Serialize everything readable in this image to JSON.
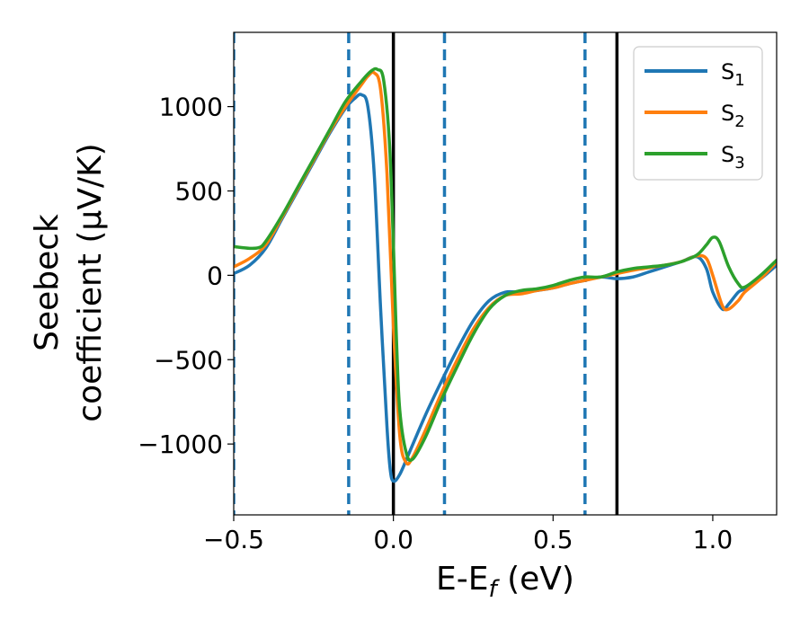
{
  "chart_data": {
    "type": "line",
    "xlabel": "E-E_f (eV)",
    "xlabel_main": "E-E",
    "xlabel_sub": "f",
    "xlabel_tail": " (eV)",
    "ylabel_line1": "Seebeck",
    "ylabel_line2": "coefficient  (μV/K)",
    "xlim": [
      -0.5,
      1.2
    ],
    "ylim": [
      -1420,
      1440
    ],
    "xticks": [
      -0.5,
      0.0,
      0.5,
      1.0
    ],
    "xtick_labels": [
      "−0.5",
      "0.0",
      "0.5",
      "1.0"
    ],
    "yticks": [
      -1000,
      -500,
      0,
      500,
      1000
    ],
    "ytick_labels": [
      "−1000",
      "−500",
      "0",
      "500",
      "1000"
    ],
    "grid": false,
    "legend_position": "top-right",
    "vlines_solid": [
      0.0,
      0.7
    ],
    "vlines_dashed": [
      -0.5,
      -0.14,
      0.16,
      0.6
    ],
    "vline_solid_color": "#000000",
    "vline_dashed_color": "#1f77b4",
    "series": [
      {
        "name": "S",
        "subscript": "1",
        "color": "#1f77b4",
        "x": [
          -0.5,
          -0.45,
          -0.4,
          -0.35,
          -0.3,
          -0.25,
          -0.2,
          -0.15,
          -0.12,
          -0.1,
          -0.08,
          -0.06,
          -0.04,
          -0.02,
          -0.01,
          0.0,
          0.02,
          0.05,
          0.1,
          0.15,
          0.2,
          0.25,
          0.3,
          0.35,
          0.4,
          0.45,
          0.5,
          0.55,
          0.6,
          0.65,
          0.7,
          0.75,
          0.8,
          0.85,
          0.9,
          0.95,
          0.98,
          1.0,
          1.03,
          1.05,
          1.08,
          1.1,
          1.15,
          1.2
        ],
        "y": [
          10,
          60,
          160,
          330,
          500,
          670,
          840,
          990,
          1050,
          1070,
          1000,
          600,
          -200,
          -900,
          -1150,
          -1220,
          -1180,
          -1050,
          -830,
          -630,
          -440,
          -270,
          -150,
          -100,
          -100,
          -90,
          -75,
          -50,
          -30,
          -10,
          -20,
          -10,
          20,
          50,
          80,
          110,
          40,
          -100,
          -200,
          -170,
          -100,
          -80,
          -20,
          60
        ]
      },
      {
        "name": "S",
        "subscript": "2",
        "color": "#ff7f0e",
        "x": [
          -0.5,
          -0.45,
          -0.4,
          -0.35,
          -0.3,
          -0.25,
          -0.2,
          -0.15,
          -0.1,
          -0.08,
          -0.06,
          -0.04,
          -0.02,
          0.0,
          0.02,
          0.04,
          0.06,
          0.1,
          0.15,
          0.2,
          0.25,
          0.3,
          0.35,
          0.4,
          0.45,
          0.5,
          0.55,
          0.6,
          0.65,
          0.7,
          0.75,
          0.8,
          0.85,
          0.9,
          0.95,
          0.98,
          1.0,
          1.03,
          1.05,
          1.08,
          1.1,
          1.15,
          1.2
        ],
        "y": [
          50,
          100,
          180,
          340,
          510,
          680,
          850,
          1000,
          1130,
          1180,
          1200,
          1100,
          600,
          -300,
          -950,
          -1110,
          -1080,
          -920,
          -700,
          -500,
          -320,
          -190,
          -120,
          -110,
          -90,
          -75,
          -50,
          -30,
          -10,
          10,
          30,
          45,
          60,
          80,
          115,
          100,
          0,
          -180,
          -200,
          -150,
          -100,
          -20,
          80
        ]
      },
      {
        "name": "S",
        "subscript": "3",
        "color": "#2ca02c",
        "x": [
          -0.5,
          -0.45,
          -0.42,
          -0.4,
          -0.35,
          -0.3,
          -0.25,
          -0.2,
          -0.15,
          -0.1,
          -0.07,
          -0.05,
          -0.03,
          -0.01,
          0.01,
          0.02,
          0.04,
          0.06,
          0.1,
          0.15,
          0.2,
          0.25,
          0.3,
          0.35,
          0.4,
          0.45,
          0.5,
          0.55,
          0.6,
          0.65,
          0.7,
          0.75,
          0.8,
          0.85,
          0.9,
          0.95,
          0.98,
          1.0,
          1.02,
          1.05,
          1.08,
          1.1,
          1.15,
          1.2
        ],
        "y": [
          170,
          160,
          165,
          200,
          350,
          520,
          690,
          860,
          1030,
          1150,
          1210,
          1220,
          1150,
          700,
          -400,
          -800,
          -1050,
          -1090,
          -960,
          -740,
          -540,
          -350,
          -200,
          -120,
          -90,
          -80,
          -60,
          -30,
          -10,
          -10,
          20,
          40,
          50,
          60,
          80,
          120,
          180,
          225,
          200,
          50,
          -50,
          -70,
          0,
          90
        ]
      }
    ]
  }
}
